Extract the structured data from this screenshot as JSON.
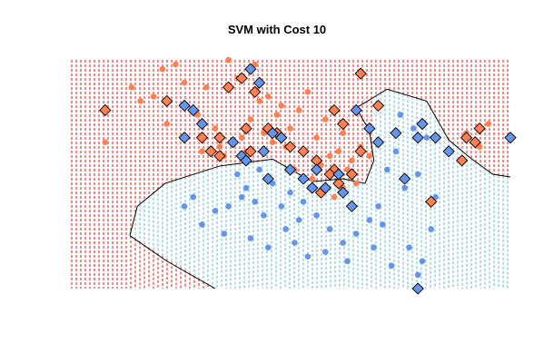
{
  "chart_data": {
    "type": "scatter",
    "title": "SVM with Cost 10",
    "xlabel": "",
    "ylabel": "",
    "axes_shown": false,
    "grid": false,
    "legend": "none",
    "x_range": [
      0,
      10
    ],
    "y_range": [
      0,
      5
    ],
    "colors": {
      "region_class_1": "#e8706a",
      "region_class_2": "#9fd3dc",
      "class_1_point": "#ff7f50",
      "class_2_point": "#6495ed",
      "support_vector_outline": "#000000",
      "boundary": "#000000"
    },
    "decision_boundary": [
      [
        1.36,
        1.16
      ],
      [
        1.53,
        1.8
      ],
      [
        2.16,
        2.3
      ],
      [
        3.4,
        2.68
      ],
      [
        4.6,
        2.83
      ],
      [
        5.5,
        2.34
      ],
      [
        6.2,
        2.4
      ],
      [
        6.7,
        2.3
      ],
      [
        6.9,
        2.8
      ],
      [
        6.8,
        3.45
      ],
      [
        6.5,
        3.95
      ],
      [
        7.2,
        4.36
      ],
      [
        8.1,
        4.1
      ],
      [
        8.6,
        3.25
      ],
      [
        9.1,
        2.85
      ],
      [
        9.6,
        2.5
      ],
      [
        10.0,
        2.44
      ]
    ],
    "decision_boundary_lower": [
      [
        1.36,
        1.16
      ],
      [
        2.2,
        0.6
      ],
      [
        3.3,
        0.0
      ]
    ],
    "series": [
      {
        "class": "1",
        "marker": "circle",
        "points": [
          [
            0.8,
            3.2
          ],
          [
            1.4,
            4.4
          ],
          [
            1.6,
            4.1
          ],
          [
            2.1,
            4.8
          ],
          [
            2.4,
            4.9
          ],
          [
            1.9,
            4.2
          ],
          [
            2.6,
            4.5
          ],
          [
            3.1,
            4.4
          ],
          [
            3.6,
            5.0
          ],
          [
            3.8,
            4.6
          ],
          [
            4.2,
            4.9
          ],
          [
            4.5,
            4.2
          ],
          [
            2.9,
            3.8
          ],
          [
            3.3,
            3.5
          ],
          [
            3.4,
            3.1
          ],
          [
            3.9,
            3.3
          ],
          [
            4.1,
            3.7
          ],
          [
            4.3,
            4.1
          ],
          [
            4.7,
            3.8
          ],
          [
            5.0,
            3.5
          ],
          [
            5.2,
            3.9
          ],
          [
            5.4,
            4.3
          ],
          [
            4.9,
            3.1
          ],
          [
            5.6,
            3.3
          ],
          [
            5.8,
            3.7
          ],
          [
            6.0,
            3.9
          ],
          [
            6.2,
            3.4
          ],
          [
            5.7,
            2.7
          ],
          [
            5.9,
            2.9
          ],
          [
            6.3,
            2.6
          ],
          [
            6.5,
            2.3
          ],
          [
            6.6,
            3.1
          ],
          [
            6.4,
            2.8
          ],
          [
            5.5,
            2.4
          ],
          [
            6.0,
            2.0
          ],
          [
            6.2,
            2.2
          ],
          [
            4.6,
            3.2
          ],
          [
            4.0,
            3.0
          ],
          [
            3.5,
            2.9
          ],
          [
            4.4,
            3.4
          ],
          [
            4.8,
            4.0
          ],
          [
            5.3,
            3.0
          ],
          [
            2.2,
            3.6
          ],
          [
            3.0,
            3.0
          ],
          [
            6.8,
            2.9
          ],
          [
            9.0,
            3.4
          ],
          [
            9.3,
            3.1
          ],
          [
            9.5,
            3.6
          ],
          [
            6.1,
            3.0
          ],
          [
            5.1,
            2.6
          ]
        ]
      },
      {
        "class": "2",
        "marker": "circle",
        "points": [
          [
            7.5,
            3.8
          ],
          [
            7.8,
            3.5
          ],
          [
            8.1,
            3.3
          ],
          [
            7.4,
            3.0
          ],
          [
            7.2,
            2.6
          ],
          [
            7.6,
            2.2
          ],
          [
            7.9,
            2.5
          ],
          [
            8.3,
            2.0
          ],
          [
            7.0,
            1.8
          ],
          [
            6.8,
            1.5
          ],
          [
            6.5,
            1.2
          ],
          [
            6.2,
            1.0
          ],
          [
            5.9,
            1.3
          ],
          [
            5.6,
            1.6
          ],
          [
            5.3,
            1.9
          ],
          [
            5.0,
            2.1
          ],
          [
            4.8,
            1.8
          ],
          [
            4.6,
            2.3
          ],
          [
            4.4,
            1.6
          ],
          [
            4.2,
            1.9
          ],
          [
            4.0,
            2.2
          ],
          [
            3.8,
            2.5
          ],
          [
            3.6,
            1.8
          ],
          [
            3.3,
            1.7
          ],
          [
            3.0,
            1.4
          ],
          [
            2.8,
            2.0
          ],
          [
            3.5,
            1.2
          ],
          [
            4.1,
            1.1
          ],
          [
            4.5,
            0.9
          ],
          [
            5.1,
            1.0
          ],
          [
            5.4,
            0.7
          ],
          [
            5.8,
            0.8
          ],
          [
            6.3,
            0.6
          ],
          [
            7.3,
            0.5
          ],
          [
            7.9,
            0.3
          ],
          [
            8.2,
            1.3
          ],
          [
            7.7,
            0.9
          ],
          [
            6.9,
            0.9
          ],
          [
            4.9,
            1.3
          ],
          [
            5.2,
            1.5
          ],
          [
            4.3,
            2.6
          ],
          [
            3.9,
            2.0
          ],
          [
            2.6,
            1.8
          ],
          [
            7.1,
            1.4
          ],
          [
            8.0,
            0.6
          ]
        ]
      },
      {
        "class": "1",
        "marker": "diamond-support-vector",
        "points": [
          [
            0.8,
            3.9
          ],
          [
            2.2,
            4.1
          ],
          [
            3.0,
            3.3
          ],
          [
            3.4,
            3.3
          ],
          [
            3.6,
            4.4
          ],
          [
            3.9,
            4.6
          ],
          [
            4.2,
            4.3
          ],
          [
            4.5,
            3.5
          ],
          [
            4.0,
            3.5
          ],
          [
            5.0,
            3.1
          ],
          [
            5.3,
            3.0
          ],
          [
            5.6,
            2.8
          ],
          [
            6.0,
            2.6
          ],
          [
            5.7,
            2.1
          ],
          [
            6.1,
            2.3
          ],
          [
            6.4,
            2.5
          ],
          [
            6.6,
            3.0
          ],
          [
            6.0,
            3.9
          ],
          [
            6.2,
            3.6
          ],
          [
            6.6,
            4.7
          ],
          [
            7.0,
            4.0
          ],
          [
            8.2,
            1.9
          ],
          [
            9.3,
            3.5
          ],
          [
            9.2,
            3.2
          ],
          [
            9.0,
            3.3
          ],
          [
            3.4,
            2.9
          ],
          [
            4.7,
            3.4
          ],
          [
            5.9,
            2.5
          ],
          [
            4.1,
            3.0
          ],
          [
            3.2,
            3.0
          ],
          [
            8.9,
            2.8
          ]
        ]
      },
      {
        "class": "2",
        "marker": "diamond-support-vector",
        "points": [
          [
            2.6,
            4.0
          ],
          [
            2.8,
            3.9
          ],
          [
            2.6,
            3.3
          ],
          [
            3.0,
            3.6
          ],
          [
            3.7,
            3.2
          ],
          [
            3.9,
            2.9
          ],
          [
            4.1,
            4.8
          ],
          [
            4.3,
            4.5
          ],
          [
            4.0,
            2.8
          ],
          [
            4.4,
            3.0
          ],
          [
            4.6,
            3.4
          ],
          [
            4.8,
            3.3
          ],
          [
            5.0,
            2.6
          ],
          [
            5.3,
            2.4
          ],
          [
            5.5,
            2.2
          ],
          [
            5.6,
            2.6
          ],
          [
            5.8,
            2.2
          ],
          [
            6.1,
            2.5
          ],
          [
            6.2,
            2.1
          ],
          [
            6.5,
            3.9
          ],
          [
            6.8,
            3.5
          ],
          [
            7.0,
            3.2
          ],
          [
            7.4,
            3.4
          ],
          [
            7.9,
            3.3
          ],
          [
            8.0,
            3.6
          ],
          [
            8.3,
            3.3
          ],
          [
            8.6,
            3.0
          ],
          [
            10.0,
            3.3
          ],
          [
            7.6,
            2.4
          ],
          [
            6.4,
            1.8
          ],
          [
            7.9,
            0.0
          ],
          [
            4.5,
            2.4
          ]
        ]
      }
    ]
  }
}
